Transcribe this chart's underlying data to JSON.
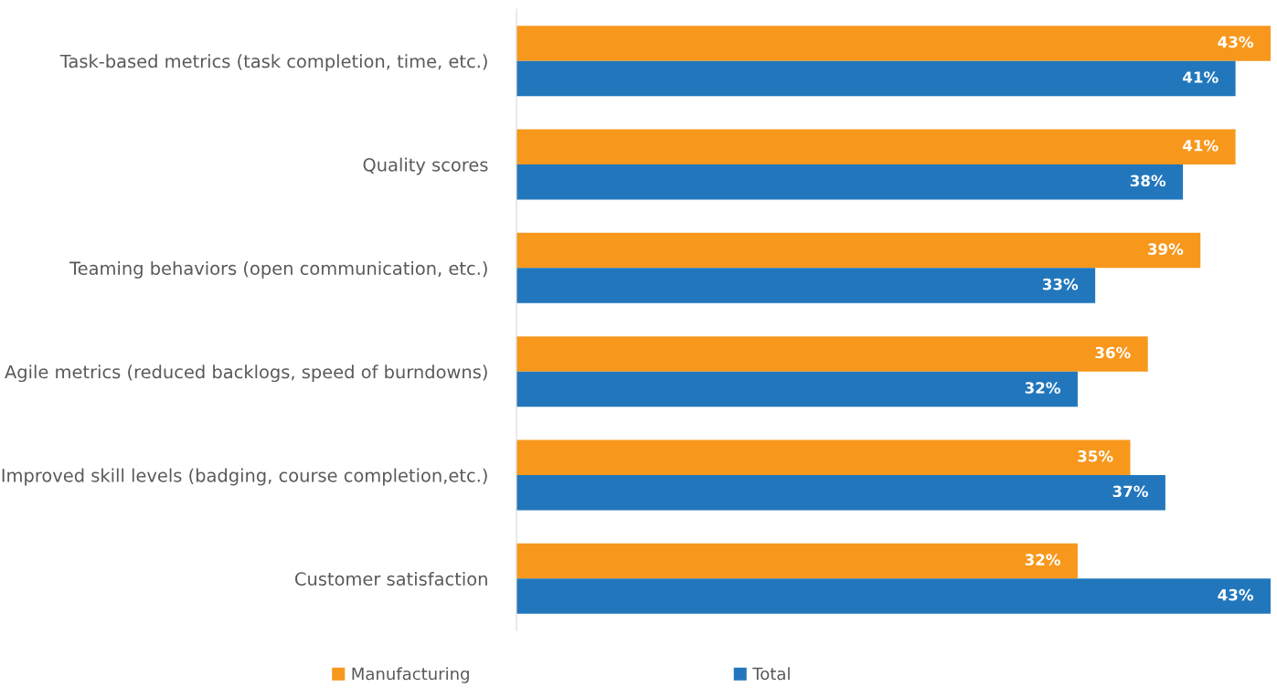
{
  "chart_data": {
    "type": "bar",
    "orientation": "horizontal",
    "categories": [
      "Task-based metrics (task completion, time, etc.)",
      "Quality scores",
      "Teaming behaviors (open communication, etc.)",
      "Agile metrics (reduced backlogs, speed of burndowns)",
      "Improved skill levels (badging, course completion,etc.)",
      "Customer satisfaction"
    ],
    "series": [
      {
        "name": "Manufacturing",
        "color": "#f7981d",
        "values": [
          43,
          41,
          39,
          36,
          35,
          32
        ],
        "value_labels": [
          "43%",
          "41%",
          "39%",
          "36%",
          "35%",
          "32%"
        ]
      },
      {
        "name": "Total",
        "color": "#2277bc",
        "values": [
          41,
          38,
          33,
          32,
          37,
          43
        ],
        "value_labels": [
          "41%",
          "38%",
          "33%",
          "32%",
          "37%",
          "43%"
        ]
      }
    ],
    "tick_labels": "y",
    "legend": "bottom",
    "grid": false
  }
}
